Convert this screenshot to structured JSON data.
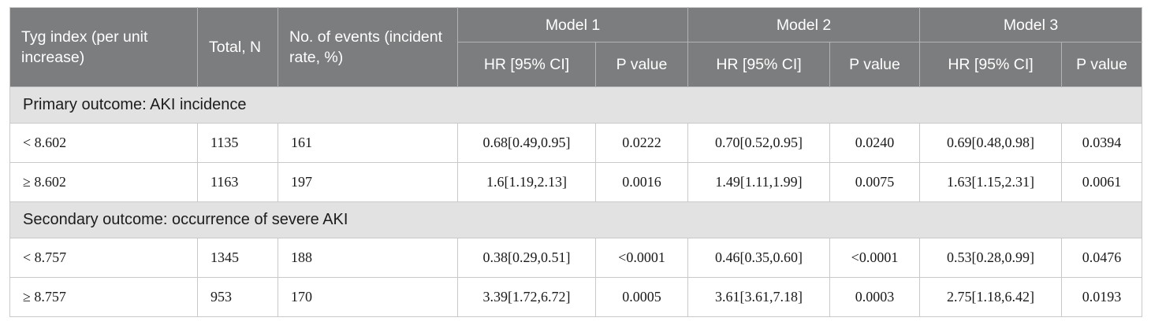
{
  "colors": {
    "header_bg": "#7c7d7f",
    "header_text": "#ffffff",
    "section_bg": "#e2e2e2",
    "row_bg": "#ffffff",
    "border": "#c9c9c9",
    "header_divider": "#b2b3b5",
    "text": "#1a1a1a"
  },
  "table": {
    "headers": {
      "tyg_index": "Tyg index (per unit increase)",
      "total_n": "Total, N",
      "events": "No. of events (incident rate, %)"
    },
    "models": [
      {
        "label": "Model 1",
        "hr_header": "HR [95% CI]",
        "p_header": "P value"
      },
      {
        "label": "Model 2",
        "hr_header": "HR [95% CI]",
        "p_header": "P value"
      },
      {
        "label": "Model 3",
        "hr_header": "HR [95% CI]",
        "p_header": "P value"
      }
    ],
    "sections": [
      {
        "title": "Primary outcome: AKI incidence",
        "rows": [
          {
            "group": "< 8.602",
            "total_n": "1135",
            "events": "161",
            "m1_hr": "0.68[0.49,0.95]",
            "m1_p": "0.0222",
            "m2_hr": "0.70[0.52,0.95]",
            "m2_p": "0.0240",
            "m3_hr": "0.69[0.48,0.98]",
            "m3_p": "0.0394"
          },
          {
            "group": "≥ 8.602",
            "total_n": "1163",
            "events": "197",
            "m1_hr": "1.6[1.19,2.13]",
            "m1_p": "0.0016",
            "m2_hr": "1.49[1.11,1.99]",
            "m2_p": "0.0075",
            "m3_hr": "1.63[1.15,2.31]",
            "m3_p": "0.0061"
          }
        ]
      },
      {
        "title": "Secondary outcome: occurrence of severe AKI",
        "rows": [
          {
            "group": "< 8.757",
            "total_n": "1345",
            "events": "188",
            "m1_hr": "0.38[0.29,0.51]",
            "m1_p": "<0.0001",
            "m2_hr": "0.46[0.35,0.60]",
            "m2_p": "<0.0001",
            "m3_hr": "0.53[0.28,0.99]",
            "m3_p": "0.0476"
          },
          {
            "group": "≥ 8.757",
            "total_n": "953",
            "events": "170",
            "m1_hr": "3.39[1.72,6.72]",
            "m1_p": "0.0005",
            "m2_hr": "3.61[3.61,7.18]",
            "m2_p": "0.0003",
            "m3_hr": "2.75[1.18,6.42]",
            "m3_p": "0.0193"
          }
        ]
      }
    ]
  }
}
